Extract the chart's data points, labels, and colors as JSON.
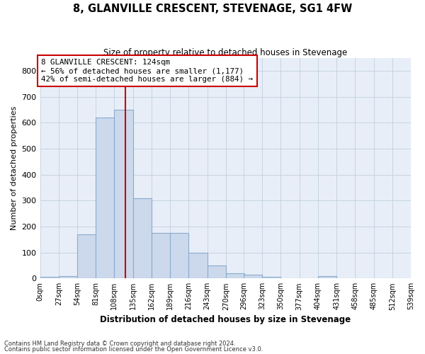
{
  "title": "8, GLANVILLE CRESCENT, STEVENAGE, SG1 4FW",
  "subtitle": "Size of property relative to detached houses in Stevenage",
  "xlabel": "Distribution of detached houses by size in Stevenage",
  "ylabel": "Number of detached properties",
  "footnote1": "Contains HM Land Registry data © Crown copyright and database right 2024.",
  "footnote2": "Contains public sector information licensed under the Open Government Licence v3.0.",
  "bar_color": "#ccd9ec",
  "bar_edge_color": "#8aaace",
  "grid_color": "#c0cfe0",
  "bg_color": "#e8eef7",
  "line_color": "#cc0000",
  "annotation_box_edgecolor": "#cc0000",
  "annotation_text_line1": "8 GLANVILLE CRESCENT: 124sqm",
  "annotation_text_line2": "← 56% of detached houses are smaller (1,177)",
  "annotation_text_line3": "42% of semi-detached houses are larger (884) →",
  "property_line_x": 124,
  "bin_width": 27,
  "bin_starts": [
    0,
    27,
    54,
    81,
    108,
    135,
    162,
    189,
    216,
    243,
    270,
    296,
    323,
    350,
    377,
    404,
    431,
    458,
    485,
    512
  ],
  "bin_labels": [
    "0sqm",
    "27sqm",
    "54sqm",
    "81sqm",
    "108sqm",
    "135sqm",
    "162sqm",
    "189sqm",
    "216sqm",
    "243sqm",
    "270sqm",
    "296sqm",
    "323sqm",
    "350sqm",
    "377sqm",
    "404sqm",
    "431sqm",
    "458sqm",
    "485sqm",
    "512sqm",
    "539sqm"
  ],
  "counts": [
    5,
    10,
    170,
    620,
    650,
    310,
    175,
    175,
    100,
    50,
    20,
    15,
    5,
    0,
    0,
    10,
    0,
    0,
    0,
    0
  ],
  "ylim": [
    0,
    850
  ],
  "yticks": [
    0,
    100,
    200,
    300,
    400,
    500,
    600,
    700,
    800
  ],
  "figsize": [
    6.0,
    5.0
  ],
  "dpi": 100
}
